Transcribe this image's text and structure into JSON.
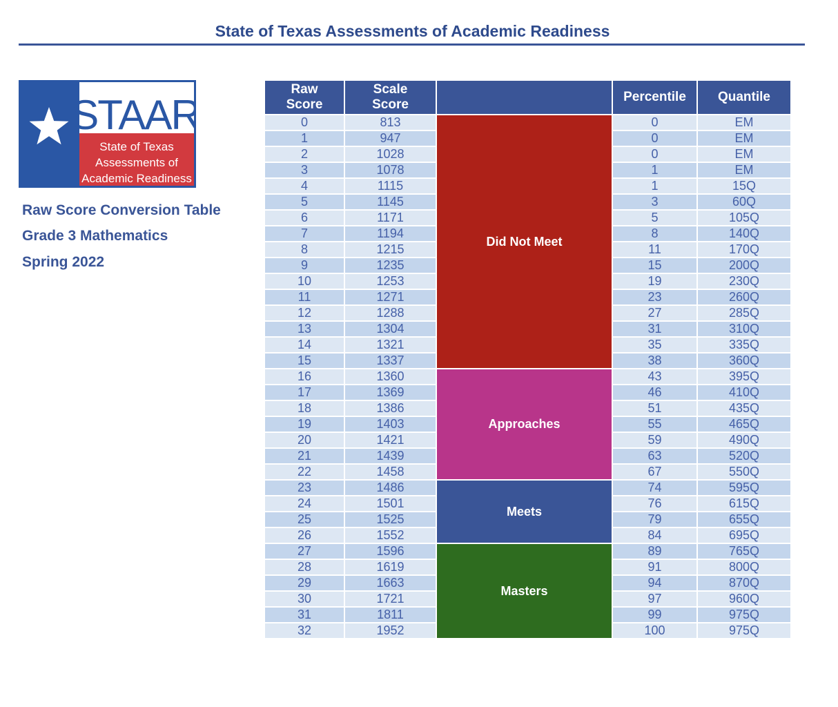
{
  "header": {
    "title": "State of Texas Assessments of Academic Readiness"
  },
  "logo": {
    "wordmark": "STAAR",
    "lines": [
      "State of Texas",
      "Assessments of",
      "Academic Readiness"
    ],
    "colors": {
      "blue": "#2a57a5",
      "red": "#d23a3f",
      "white": "#ffffff"
    }
  },
  "sidebar": {
    "line1": "Raw Score Conversion Table",
    "line2": "Grade 3 Mathematics",
    "line3": "Spring 2022"
  },
  "table": {
    "headers": {
      "raw_line1": "Raw",
      "raw_line2": "Score",
      "scale_line1": "Scale",
      "scale_line2": "Score",
      "band": "",
      "percentile": "Percentile",
      "quantile": "Quantile"
    },
    "rows": [
      {
        "raw": "0",
        "scale": "813",
        "percentile": "0",
        "quantile": "EM"
      },
      {
        "raw": "1",
        "scale": "947",
        "percentile": "0",
        "quantile": "EM"
      },
      {
        "raw": "2",
        "scale": "1028",
        "percentile": "0",
        "quantile": "EM"
      },
      {
        "raw": "3",
        "scale": "1078",
        "percentile": "1",
        "quantile": "EM"
      },
      {
        "raw": "4",
        "scale": "1115",
        "percentile": "1",
        "quantile": "15Q"
      },
      {
        "raw": "5",
        "scale": "1145",
        "percentile": "3",
        "quantile": "60Q"
      },
      {
        "raw": "6",
        "scale": "1171",
        "percentile": "5",
        "quantile": "105Q"
      },
      {
        "raw": "7",
        "scale": "1194",
        "percentile": "8",
        "quantile": "140Q"
      },
      {
        "raw": "8",
        "scale": "1215",
        "percentile": "11",
        "quantile": "170Q"
      },
      {
        "raw": "9",
        "scale": "1235",
        "percentile": "15",
        "quantile": "200Q"
      },
      {
        "raw": "10",
        "scale": "1253",
        "percentile": "19",
        "quantile": "230Q"
      },
      {
        "raw": "11",
        "scale": "1271",
        "percentile": "23",
        "quantile": "260Q"
      },
      {
        "raw": "12",
        "scale": "1288",
        "percentile": "27",
        "quantile": "285Q"
      },
      {
        "raw": "13",
        "scale": "1304",
        "percentile": "31",
        "quantile": "310Q"
      },
      {
        "raw": "14",
        "scale": "1321",
        "percentile": "35",
        "quantile": "335Q"
      },
      {
        "raw": "15",
        "scale": "1337",
        "percentile": "38",
        "quantile": "360Q"
      },
      {
        "raw": "16",
        "scale": "1360",
        "percentile": "43",
        "quantile": "395Q"
      },
      {
        "raw": "17",
        "scale": "1369",
        "percentile": "46",
        "quantile": "410Q"
      },
      {
        "raw": "18",
        "scale": "1386",
        "percentile": "51",
        "quantile": "435Q"
      },
      {
        "raw": "19",
        "scale": "1403",
        "percentile": "55",
        "quantile": "465Q"
      },
      {
        "raw": "20",
        "scale": "1421",
        "percentile": "59",
        "quantile": "490Q"
      },
      {
        "raw": "21",
        "scale": "1439",
        "percentile": "63",
        "quantile": "520Q"
      },
      {
        "raw": "22",
        "scale": "1458",
        "percentile": "67",
        "quantile": "550Q"
      },
      {
        "raw": "23",
        "scale": "1486",
        "percentile": "74",
        "quantile": "595Q"
      },
      {
        "raw": "24",
        "scale": "1501",
        "percentile": "76",
        "quantile": "615Q"
      },
      {
        "raw": "25",
        "scale": "1525",
        "percentile": "79",
        "quantile": "655Q"
      },
      {
        "raw": "26",
        "scale": "1552",
        "percentile": "84",
        "quantile": "695Q"
      },
      {
        "raw": "27",
        "scale": "1596",
        "percentile": "89",
        "quantile": "765Q"
      },
      {
        "raw": "28",
        "scale": "1619",
        "percentile": "91",
        "quantile": "800Q"
      },
      {
        "raw": "29",
        "scale": "1663",
        "percentile": "94",
        "quantile": "870Q"
      },
      {
        "raw": "30",
        "scale": "1721",
        "percentile": "97",
        "quantile": "960Q"
      },
      {
        "raw": "31",
        "scale": "1811",
        "percentile": "99",
        "quantile": "975Q"
      },
      {
        "raw": "32",
        "scale": "1952",
        "percentile": "100",
        "quantile": "975Q"
      }
    ],
    "bands": [
      {
        "label": "Did Not Meet",
        "start": 0,
        "rows": 16,
        "color": "#ad2118"
      },
      {
        "label": "Approaches",
        "start": 16,
        "rows": 7,
        "color": "#b8358a"
      },
      {
        "label": "Meets",
        "start": 23,
        "rows": 4,
        "color": "#3a5597"
      },
      {
        "label": "Masters",
        "start": 27,
        "rows": 6,
        "color": "#2e6c1f"
      }
    ]
  }
}
